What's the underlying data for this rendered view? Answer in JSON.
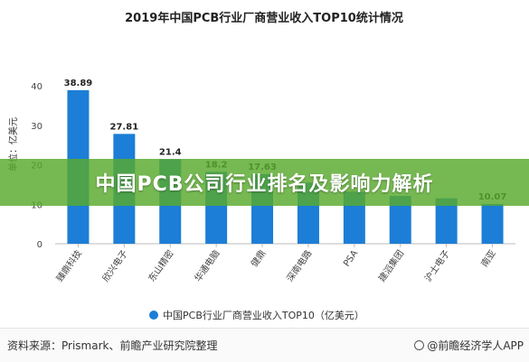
{
  "chart_data": {
    "type": "bar",
    "title": "2019年中国PCB行业厂商营业收入TOP10统计情况",
    "ylabel": "单位：亿美元",
    "ylim": [
      0,
      40
    ],
    "yticks": [
      0,
      10,
      20,
      30,
      40
    ],
    "categories": [
      "臻鼎科技",
      "欣兴电子",
      "东山精密",
      "华通电脑",
      "健鼎",
      "深南电路",
      "PSA",
      "建滔集团",
      "沪士电子",
      "南亚"
    ],
    "series": [
      {
        "name": "中国PCB行业厂商营业收入TOP10（亿美元）",
        "values": [
          38.89,
          27.81,
          21.4,
          18.2,
          17.63,
          15.5,
          13.2,
          12.1,
          11.5,
          10.07
        ],
        "labels": [
          "38.89",
          "27.81",
          "21.4",
          "18.2",
          "17.63",
          "",
          "",
          "",
          "",
          "10.07"
        ]
      }
    ],
    "legend": "bottom",
    "grid": false,
    "bar_color": "#1c7ed6"
  },
  "banner": {
    "text": "中国PCB公司行业排名及影响力解析"
  },
  "footer": {
    "source": "资料来源：Prismark、前瞻产业研究院整理",
    "brand": "@前瞻经济学人APP"
  }
}
